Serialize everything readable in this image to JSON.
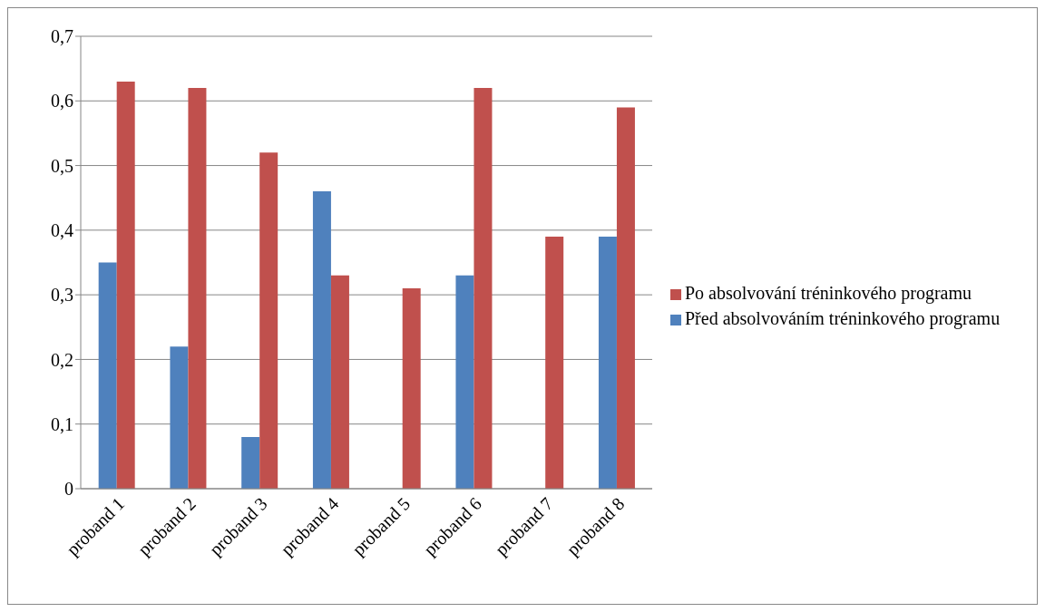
{
  "chart_data": {
    "type": "bar",
    "categories": [
      "proband 1",
      "proband 2",
      "proband 3",
      "proband 4",
      "proband 5",
      "proband 6",
      "proband 7",
      "proband 8"
    ],
    "series": [
      {
        "name": "Před absolvováním tréninkového programu",
        "color": "#4f81bd",
        "values": [
          0.35,
          0.22,
          0.08,
          0.46,
          0,
          0.33,
          0,
          0.39
        ]
      },
      {
        "name": "Po absolvování tréninkového programu",
        "color": "#c0504d",
        "values": [
          0.63,
          0.62,
          0.52,
          0.33,
          0.31,
          0.62,
          0.39,
          0.59
        ]
      }
    ],
    "ylim": [
      0,
      0.7
    ],
    "yticks": [
      {
        "value": 0,
        "label": "0"
      },
      {
        "value": 0.1,
        "label": "0,1"
      },
      {
        "value": 0.2,
        "label": "0,2"
      },
      {
        "value": 0.3,
        "label": "0,3"
      },
      {
        "value": 0.4,
        "label": "0,4"
      },
      {
        "value": 0.5,
        "label": "0,5"
      },
      {
        "value": 0.6,
        "label": "0,6"
      },
      {
        "value": 0.7,
        "label": "0,7"
      }
    ],
    "grid": "y",
    "legend": "right"
  }
}
